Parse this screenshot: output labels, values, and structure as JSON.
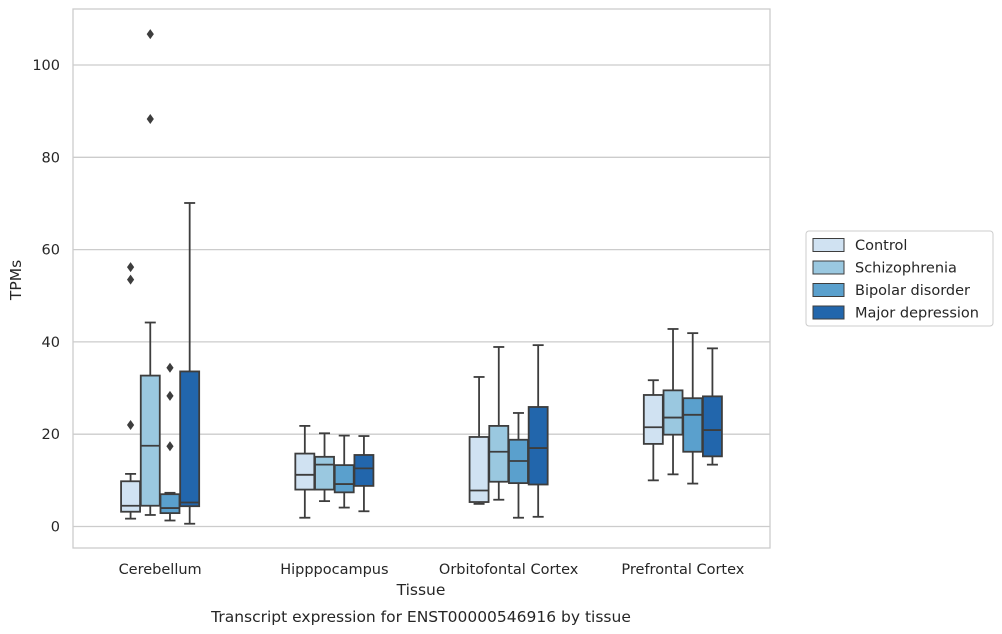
{
  "caption": "Transcript expression for ENST00000546916 by tissue",
  "chart_data": {
    "type": "box",
    "xlabel": "Tissue",
    "ylabel": "TPMs",
    "ylim": [
      -4.5,
      112.5
    ],
    "yticks": [
      0,
      20,
      40,
      60,
      80,
      100
    ],
    "grid": "horizontal",
    "legend_position": "right",
    "categories": [
      "Cerebellum",
      "Hipppocampus",
      "Orbitofontal Cortex",
      "Prefrontal Cortex"
    ],
    "series": [
      {
        "name": "Control",
        "color": "#d0e2f2",
        "boxes": [
          {
            "whisker_low": 1.7,
            "q1": 3.2,
            "median": 4.5,
            "q3": 9.8,
            "whisker_high": 11.4,
            "outliers": [
              22.0,
              53.5,
              56.2
            ]
          },
          {
            "whisker_low": 1.9,
            "q1": 8.0,
            "median": 11.2,
            "q3": 15.8,
            "whisker_high": 21.8,
            "outliers": []
          },
          {
            "whisker_low": 4.9,
            "q1": 5.3,
            "median": 7.8,
            "q3": 19.4,
            "whisker_high": 32.4,
            "outliers": []
          },
          {
            "whisker_low": 10.0,
            "q1": 17.9,
            "median": 21.5,
            "q3": 28.5,
            "whisker_high": 31.7,
            "outliers": []
          }
        ]
      },
      {
        "name": "Schizophrenia",
        "color": "#9ac8e0",
        "boxes": [
          {
            "whisker_low": 2.5,
            "q1": 4.5,
            "median": 17.5,
            "q3": 32.7,
            "whisker_high": 44.2,
            "outliers": [
              88.3,
              106.7
            ]
          },
          {
            "whisker_low": 5.5,
            "q1": 8.0,
            "median": 13.4,
            "q3": 15.1,
            "whisker_high": 20.2,
            "outliers": []
          },
          {
            "whisker_low": 5.8,
            "q1": 9.7,
            "median": 16.2,
            "q3": 21.8,
            "whisker_high": 38.9,
            "outliers": []
          },
          {
            "whisker_low": 11.3,
            "q1": 19.9,
            "median": 23.6,
            "q3": 29.5,
            "whisker_high": 42.8,
            "outliers": []
          }
        ]
      },
      {
        "name": "Bipolar disorder",
        "color": "#5aa0cd",
        "boxes": [
          {
            "whisker_low": 1.3,
            "q1": 2.9,
            "median": 4.0,
            "q3": 7.0,
            "whisker_high": 7.3,
            "outliers": [
              17.4,
              28.3,
              34.4
            ]
          },
          {
            "whisker_low": 4.1,
            "q1": 7.4,
            "median": 9.2,
            "q3": 13.3,
            "whisker_high": 19.7,
            "outliers": []
          },
          {
            "whisker_low": 1.9,
            "q1": 9.4,
            "median": 14.2,
            "q3": 18.8,
            "whisker_high": 24.6,
            "outliers": []
          },
          {
            "whisker_low": 9.3,
            "q1": 16.2,
            "median": 24.2,
            "q3": 27.8,
            "whisker_high": 41.9,
            "outliers": []
          }
        ]
      },
      {
        "name": "Major depression",
        "color": "#2266ac",
        "boxes": [
          {
            "whisker_low": 0.6,
            "q1": 4.4,
            "median": 5.2,
            "q3": 33.6,
            "whisker_high": 70.1,
            "outliers": []
          },
          {
            "whisker_low": 3.3,
            "q1": 8.8,
            "median": 12.6,
            "q3": 15.5,
            "whisker_high": 19.6,
            "outliers": []
          },
          {
            "whisker_low": 2.1,
            "q1": 9.1,
            "median": 17.0,
            "q3": 25.9,
            "whisker_high": 39.3,
            "outliers": []
          },
          {
            "whisker_low": 13.4,
            "q1": 15.2,
            "median": 20.9,
            "q3": 28.2,
            "whisker_high": 38.6,
            "outliers": []
          }
        ]
      }
    ]
  }
}
